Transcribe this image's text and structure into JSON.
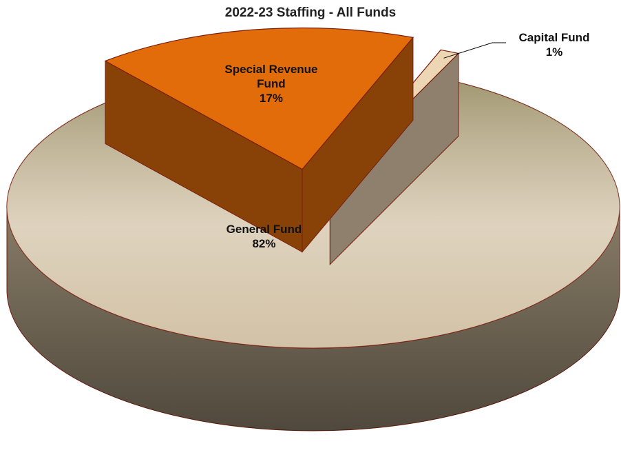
{
  "chart_data": {
    "type": "pie3d",
    "title": "2022-23 Staffing - All Funds",
    "categories": [
      "General Fund",
      "Special Revenue Fund",
      "Capital Fund"
    ],
    "values": [
      82,
      17,
      1
    ],
    "value_labels": [
      "82%",
      "17%",
      "1%"
    ],
    "colors": [
      "#cdbb9c",
      "#e36c0a",
      "#edd6b4"
    ]
  }
}
